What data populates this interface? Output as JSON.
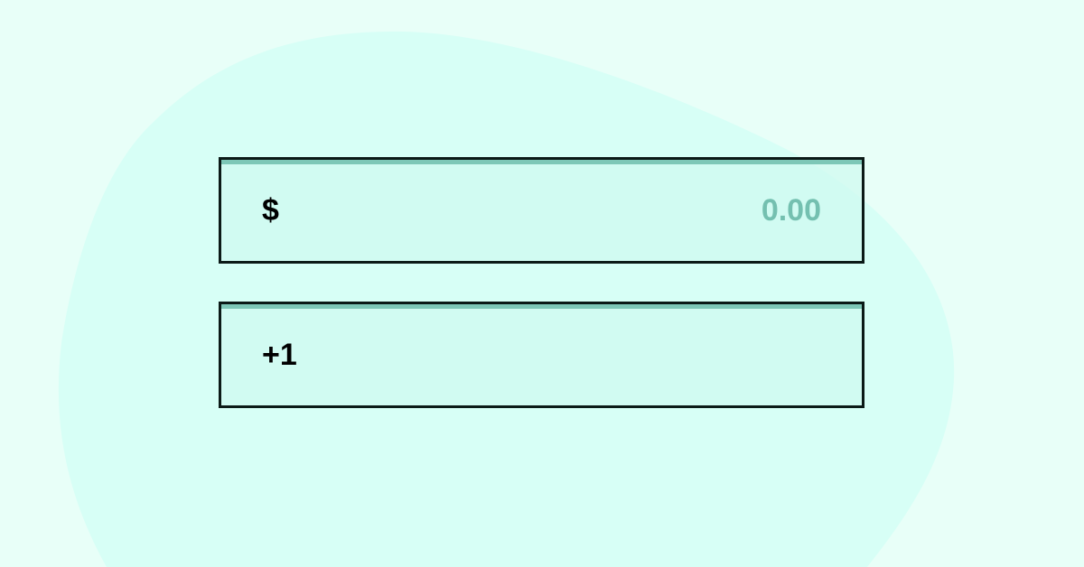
{
  "colors": {
    "background": "#e8fff8",
    "blob": "#d7fff6",
    "field_fill": "#cefaf0",
    "field_border": "#0b1a17",
    "field_top_accent": "#7dc7b7",
    "placeholder_text": "#74c0b0",
    "prefix_text": "#000000"
  },
  "currency_field": {
    "prefix": "$",
    "placeholder": "0.00",
    "value": ""
  },
  "phone_field": {
    "prefix": "+1",
    "placeholder": "",
    "value": ""
  }
}
